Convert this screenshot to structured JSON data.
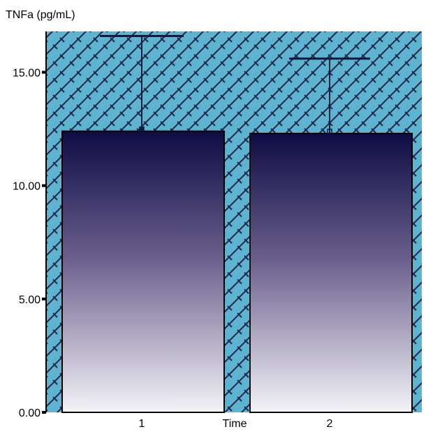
{
  "colors": {
    "plot_background": "#5eb3d1",
    "hatch_line": "#1e2a4a",
    "bar_top": "#0e0c44",
    "bar_mid": "#6a5f8c",
    "bar_bottom": "#f4f3f8",
    "bar_outline": "#000000",
    "error_bar": "#0e1a3e",
    "axis": "#000000"
  },
  "chart_data": {
    "type": "bar",
    "title": "",
    "ylabel": "TNFa (pg/mL)",
    "xlabel": "Time",
    "categories": [
      "1",
      "2"
    ],
    "values": [
      12.4,
      12.3
    ],
    "error_upper": [
      16.6,
      15.6
    ],
    "ylim": [
      0,
      16.8
    ],
    "yticks": [
      0,
      5,
      10,
      15
    ],
    "ytick_labels": [
      "0.00",
      "5.00",
      "10.00",
      "15.00"
    ],
    "grid": false,
    "legend": "none",
    "background_pattern": "brick-hatch"
  }
}
